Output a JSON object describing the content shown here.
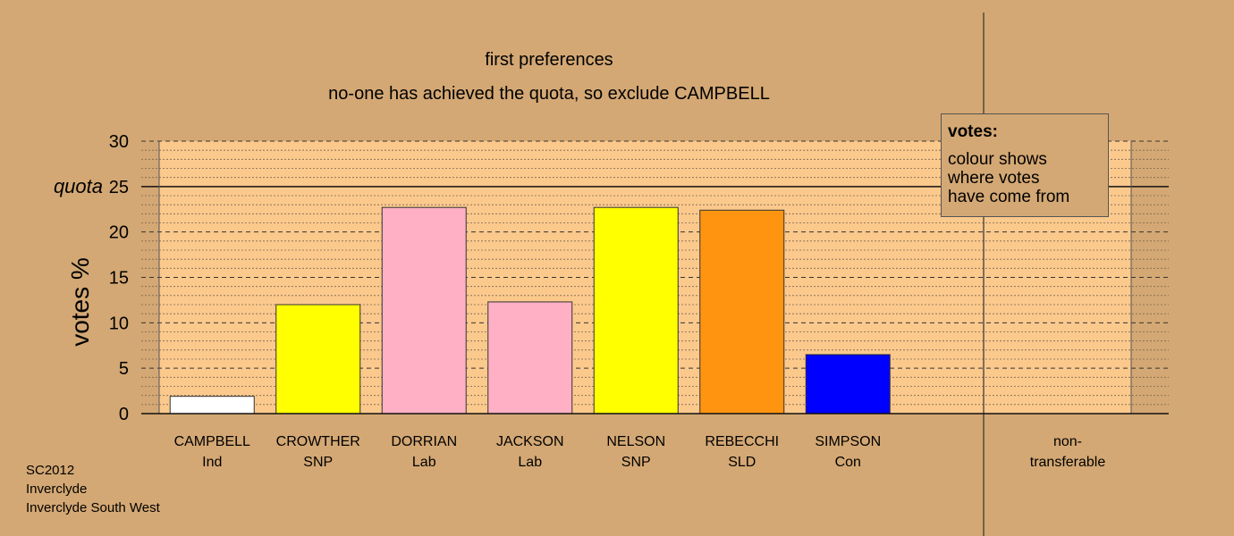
{
  "title_lines": [
    "first preferences",
    "no-one has achieved the quota, so exclude CAMPBELL"
  ],
  "ylabel": "votes %",
  "quota_label": "quota",
  "y_ticks": [
    "0",
    "5",
    "10",
    "15",
    "20",
    "25",
    "30"
  ],
  "legend": {
    "title": "votes:",
    "lines": [
      "colour shows",
      "where votes",
      "have come from"
    ]
  },
  "footer": [
    "SC2012",
    "Inverclyde",
    "Inverclyde South West"
  ],
  "colors": {
    "background": "#d4a874",
    "plot_area": "#fcc98d",
    "bar_outline": "#333333"
  },
  "chart_data": {
    "type": "bar",
    "title": "first preferences",
    "subtitle": "no-one has achieved the quota, so exclude CAMPBELL",
    "ylabel": "votes %",
    "ylim": [
      0,
      30
    ],
    "quota": 25,
    "grid": true,
    "categories": [
      {
        "name": "CAMPBELL",
        "party": "Ind",
        "value": 1.9,
        "color": "#ffffff"
      },
      {
        "name": "CROWTHER",
        "party": "SNP",
        "value": 12.0,
        "color": "#ffff00"
      },
      {
        "name": "DORRIAN",
        "party": "Lab",
        "value": 22.7,
        "color": "#ffb0c4"
      },
      {
        "name": "JACKSON",
        "party": "Lab",
        "value": 12.3,
        "color": "#ffb0c4"
      },
      {
        "name": "NELSON",
        "party": "SNP",
        "value": 22.7,
        "color": "#ffff00"
      },
      {
        "name": "REBECCHI",
        "party": "SLD",
        "value": 22.4,
        "color": "#ff9410"
      },
      {
        "name": "SIMPSON",
        "party": "Con",
        "value": 6.5,
        "color": "#0000ff"
      }
    ],
    "extra_category": {
      "name": "non-",
      "party": "transferable",
      "value": 0
    }
  }
}
